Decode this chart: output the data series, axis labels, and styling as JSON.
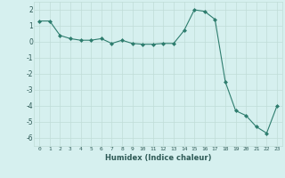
{
  "x": [
    0,
    1,
    2,
    3,
    4,
    5,
    6,
    7,
    8,
    9,
    10,
    11,
    12,
    13,
    14,
    15,
    16,
    17,
    18,
    19,
    20,
    21,
    22,
    23
  ],
  "y": [
    1.3,
    1.3,
    0.4,
    0.2,
    0.1,
    0.1,
    0.2,
    -0.1,
    0.1,
    -0.1,
    -0.15,
    -0.15,
    -0.1,
    -0.1,
    0.7,
    2.0,
    1.9,
    1.4,
    -2.5,
    -4.3,
    -4.6,
    -5.3,
    -5.7,
    -4.0
  ],
  "line_color": "#2e7d6e",
  "marker": "D",
  "marker_size": 2.0,
  "bg_color": "#d6f0ef",
  "grid_color": "#c0dcd8",
  "xlabel": "Humidex (Indice chaleur)",
  "xlim": [
    -0.5,
    23.5
  ],
  "ylim": [
    -6.5,
    2.5
  ],
  "yticks": [
    -6,
    -5,
    -4,
    -3,
    -2,
    -1,
    0,
    1,
    2
  ],
  "xtick_labels": [
    "0",
    "1",
    "2",
    "3",
    "4",
    "5",
    "6",
    "7",
    "8",
    "9",
    "10",
    "11",
    "12",
    "13",
    "14",
    "15",
    "16",
    "17",
    "18",
    "19",
    "20",
    "21",
    "22",
    "23"
  ]
}
